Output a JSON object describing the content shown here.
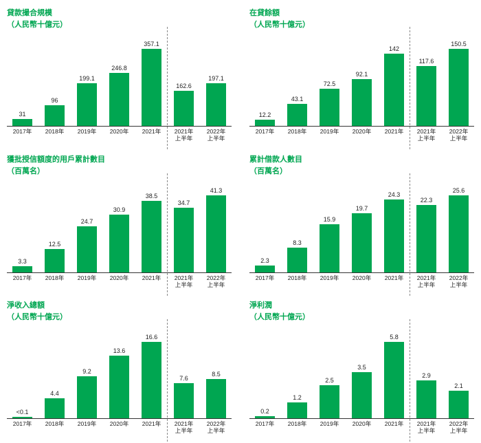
{
  "global": {
    "bar_color": "#00a651",
    "title_color": "#00a651",
    "text_color": "#222222",
    "axis_color": "#333333",
    "divider_color": "#888888",
    "background_color": "#ffffff",
    "title_fontsize": 11,
    "label_fontsize": 9,
    "xlabel_fontsize": 8.5,
    "divider_after_index": 4
  },
  "charts": [
    {
      "key": "loan_scale",
      "title": "貸款撮合規模",
      "subtitle": "（人民幣十億元）",
      "type": "bar",
      "categories": [
        "2017年",
        "2018年",
        "2019年",
        "2020年",
        "2021年",
        "2021年\n上半年",
        "2022年\n上半年"
      ],
      "values": [
        31.0,
        96.0,
        199.1,
        246.8,
        357.1,
        162.6,
        197.1
      ],
      "ymax": 357.1
    },
    {
      "key": "loan_balance",
      "title": "在貸餘額",
      "subtitle": "（人民幣十億元）",
      "type": "bar",
      "categories": [
        "2017年",
        "2018年",
        "2019年",
        "2020年",
        "2021年",
        "2021年\n上半年",
        "2022年\n上半年"
      ],
      "values": [
        12.2,
        43.1,
        72.5,
        92.1,
        142.0,
        117.6,
        150.5
      ],
      "ymax": 150.5
    },
    {
      "key": "approved_users",
      "title": "獲批授信額度的用戶累計數目",
      "subtitle": "（百萬名）",
      "type": "bar",
      "categories": [
        "2017年",
        "2018年",
        "2019年",
        "2020年",
        "2021年",
        "2021年\n上半年",
        "2022年\n上半年"
      ],
      "values": [
        3.3,
        12.5,
        24.7,
        30.9,
        38.5,
        34.7,
        41.3
      ],
      "ymax": 41.3
    },
    {
      "key": "borrowers",
      "title": "累計借款人數目",
      "subtitle": "（百萬名）",
      "type": "bar",
      "categories": [
        "2017年",
        "2018年",
        "2019年",
        "2020年",
        "2021年",
        "2021年\n上半年",
        "2022年\n上半年"
      ],
      "values": [
        2.3,
        8.3,
        15.9,
        19.7,
        24.3,
        22.3,
        25.6
      ],
      "ymax": 25.6
    },
    {
      "key": "net_revenue",
      "title": "淨收入總額",
      "subtitle": "（人民幣十億元）",
      "type": "bar",
      "categories": [
        "2017年",
        "2018年",
        "2019年",
        "2020年",
        "2021年",
        "2021年\n上半年",
        "2022年\n上半年"
      ],
      "values": [
        0.1,
        4.4,
        9.2,
        13.6,
        16.6,
        7.6,
        8.5
      ],
      "display_values": [
        "<0.1",
        "4.4",
        "9.2",
        "13.6",
        "16.6",
        "7.6",
        "8.5"
      ],
      "ymax": 16.6
    },
    {
      "key": "net_profit",
      "title": "淨利潤",
      "subtitle": "（人民幣十億元）",
      "type": "bar",
      "categories": [
        "2017年",
        "2018年",
        "2019年",
        "2020年",
        "2021年",
        "2021年\n上半年",
        "2022年\n上半年"
      ],
      "values": [
        0.2,
        1.2,
        2.5,
        3.5,
        5.8,
        2.9,
        2.1
      ],
      "ymax": 5.8
    }
  ]
}
